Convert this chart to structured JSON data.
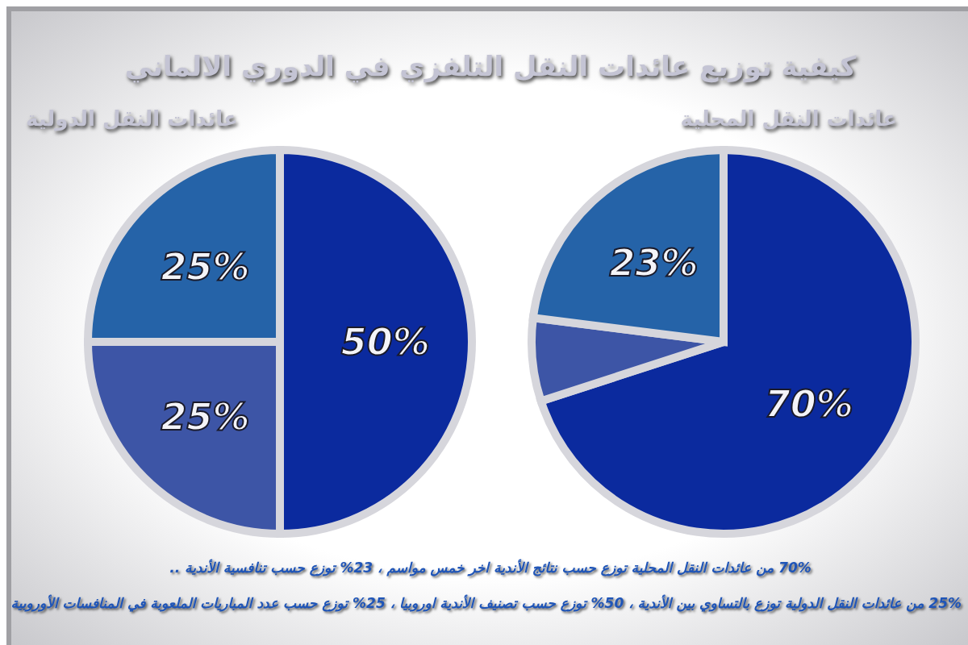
{
  "chart_data": [
    {
      "type": "pie",
      "title": "كيفية توزيع عائدات النقل التلفزي في الدوري الالماني",
      "subtitle": "عائدات النقل المحلية",
      "categories": [
        null,
        null,
        null
      ],
      "values": [
        70,
        7,
        23
      ],
      "colors": [
        "#0b2a9e",
        "#3d55a6",
        "#2563a8"
      ],
      "value_labels": [
        "70%",
        null,
        "23%"
      ],
      "legend": false,
      "annotations": [
        "70% من عائدات النقل المحلية توزع حسب نتائج الأندية اخر خمس مواسم ، 23% توزع حسب تنافسية الأندية .."
      ]
    },
    {
      "type": "pie",
      "subtitle": "عائدات النقل الدولية",
      "categories": [
        null,
        null,
        null
      ],
      "values": [
        50,
        25,
        25
      ],
      "colors": [
        "#0b2a9e",
        "#3d55a6",
        "#2563a8"
      ],
      "value_labels": [
        "50%",
        "25%",
        "25%"
      ],
      "legend": false,
      "annotations": [
        "25% من عائدات النقل الدولية توزع بالتساوي بين الأندية ، 50% توزع حسب تصنيف الأندية اوروبيا ، 25% توزع حسب عدد المباريات الملعوبة في المنافسات الأوروبية"
      ]
    }
  ]
}
